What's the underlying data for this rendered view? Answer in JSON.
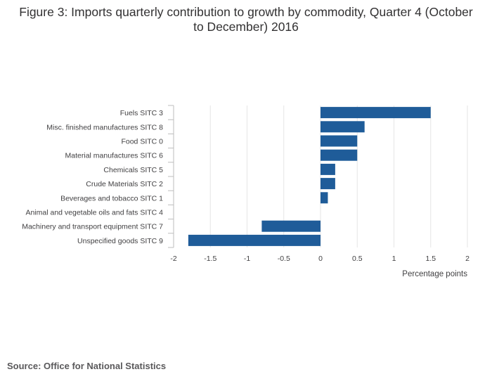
{
  "title": "Figure 3: Imports quarterly contribution to growth by commodity, Quarter 4 (October to December) 2016",
  "source": "Source: Office for National Statistics",
  "colors": {
    "bar": "#1f5c99",
    "grid": "#e6e6e6",
    "axis": "#bdbdbd"
  },
  "chart_data": {
    "type": "bar",
    "orientation": "horizontal",
    "title": "Figure 3: Imports quarterly contribution to growth by commodity, Quarter 4 (October to December) 2016",
    "xlabel": "Percentage points",
    "ylabel": "",
    "xlim": [
      -2,
      2
    ],
    "xticks": [
      -2,
      -1.5,
      -1,
      -0.5,
      0,
      0.5,
      1,
      1.5,
      2
    ],
    "xtick_labels": [
      "-2",
      "-1.5",
      "-1",
      "-0.5",
      "0",
      "0.5",
      "1",
      "1.5",
      "2"
    ],
    "categories": [
      "Fuels SITC 3",
      "Misc. finished manufactures SITC 8",
      "Food SITC 0",
      "Material manufactures SITC 6",
      "Chemicals SITC 5",
      "Crude Materials SITC 2",
      "Beverages and tobacco SITC 1",
      "Animal and vegetable oils and fats SITC 4",
      "Machinery and transport equipment SITC 7",
      "Unspecified goods SITC 9"
    ],
    "values": [
      1.5,
      0.6,
      0.5,
      0.5,
      0.2,
      0.2,
      0.1,
      0.0,
      -0.8,
      -1.8
    ],
    "grid": true
  }
}
